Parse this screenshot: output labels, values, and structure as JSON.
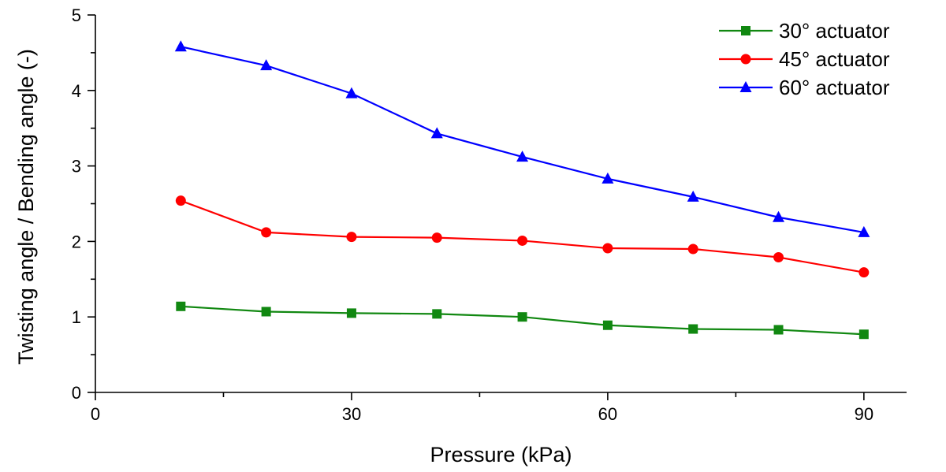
{
  "chart_data": {
    "type": "line",
    "title": "",
    "xlabel": "Pressure (kPa)",
    "ylabel": "Twisting angle / Bending angle (-)",
    "xlim": [
      0,
      95
    ],
    "ylim": [
      0,
      5
    ],
    "x_ticks": [
      0,
      30,
      60,
      90
    ],
    "x_minor_ticks": [
      15,
      45,
      75
    ],
    "y_ticks": [
      0,
      1,
      2,
      3,
      4,
      5
    ],
    "grid": false,
    "legend_position": "top-right",
    "x": [
      10,
      20,
      30,
      40,
      50,
      60,
      70,
      80,
      90
    ],
    "series": [
      {
        "name": "30° actuator",
        "color": "#118811",
        "marker": "square",
        "values": [
          1.14,
          1.07,
          1.05,
          1.04,
          1.0,
          0.89,
          0.84,
          0.83,
          0.77
        ]
      },
      {
        "name": "45° actuator",
        "color": "#ff0000",
        "marker": "circle",
        "values": [
          2.54,
          2.12,
          2.06,
          2.05,
          2.01,
          1.91,
          1.9,
          1.79,
          1.59
        ]
      },
      {
        "name": "60° actuator",
        "color": "#0000ff",
        "marker": "triangle",
        "values": [
          4.58,
          4.33,
          3.96,
          3.43,
          3.12,
          2.83,
          2.59,
          2.32,
          2.12
        ]
      }
    ]
  }
}
